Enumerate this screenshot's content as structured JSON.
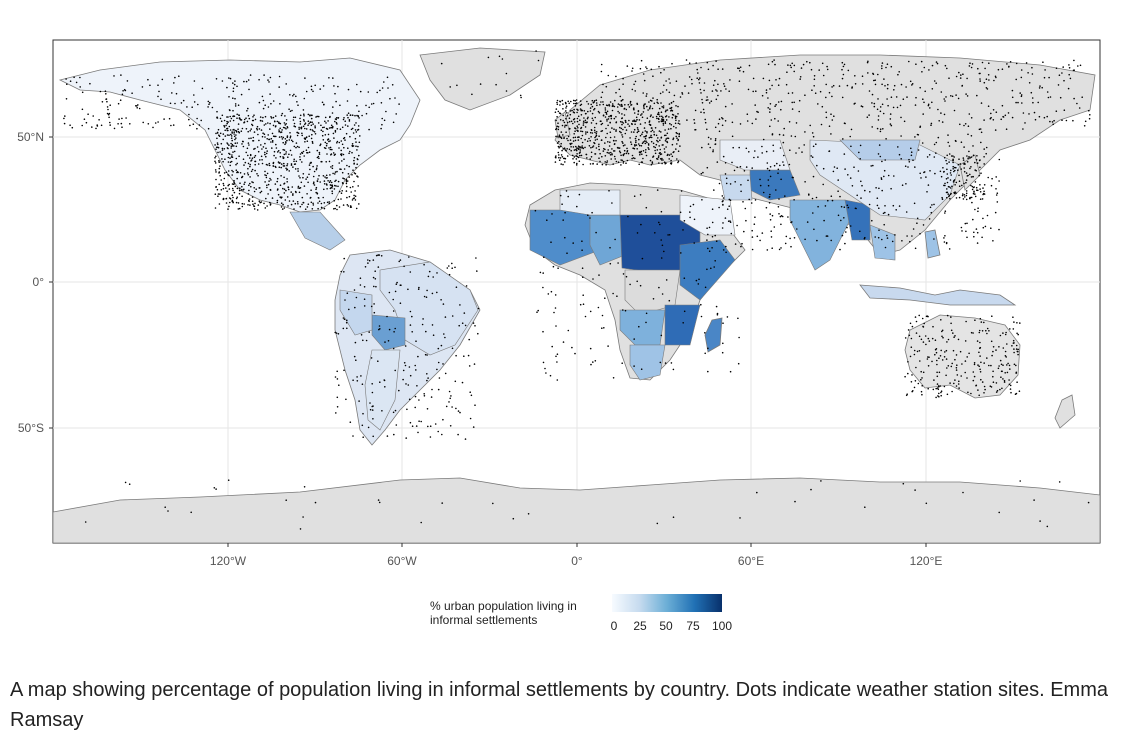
{
  "map": {
    "axis": {
      "x_ticks": [
        "120°W",
        "60°W",
        "0°",
        "60°E",
        "120°E"
      ],
      "y_ticks": [
        "50°N",
        "0°",
        "50°S"
      ]
    },
    "colors": {
      "ocean": "#ffffff",
      "no_data_land": "#e0e0e0",
      "grid": "#e6e6e6",
      "border": "#7a7a7a",
      "station_dot": "#000000",
      "scale_low": "#f7fbff",
      "scale_high": "#08306b"
    },
    "legend": {
      "title_line1": "% urban population living in",
      "title_line2": "informal settlements",
      "ticks": [
        "0",
        "25",
        "50",
        "75",
        "100"
      ]
    }
  },
  "caption": {
    "text": "A map showing percentage of population living in informal settlements by country. Dots indicate weather station sites.",
    "credit": "Emma Ramsay"
  }
}
